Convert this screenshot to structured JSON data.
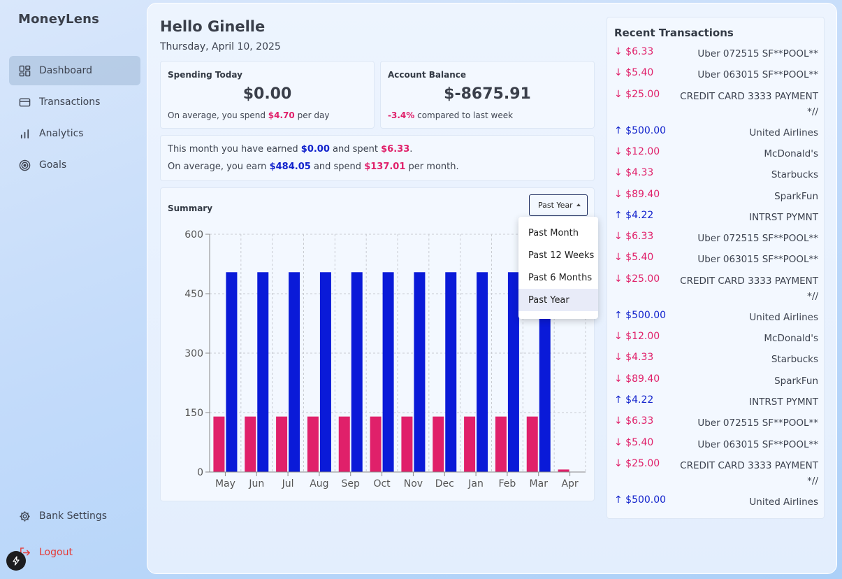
{
  "app": {
    "name": "MoneyLens"
  },
  "sidebar": {
    "items": [
      {
        "label": "Dashboard",
        "icon": "dashboard-icon"
      },
      {
        "label": "Transactions",
        "icon": "card-icon"
      },
      {
        "label": "Analytics",
        "icon": "bar-chart-icon"
      },
      {
        "label": "Goals",
        "icon": "target-icon"
      }
    ],
    "bank_settings": "Bank Settings",
    "logout": "Logout"
  },
  "header": {
    "greeting": "Hello Ginelle",
    "date": "Thursday, April 10, 2025"
  },
  "spending_today": {
    "title": "Spending Today",
    "amount": "$0.00",
    "avg_prefix": "On average, you spend",
    "avg_value": "$4.70",
    "avg_suffix": "per day"
  },
  "account_balance": {
    "title": "Account Balance",
    "amount": "$-8675.91",
    "change": "-3.4%",
    "change_suffix": "compared to last week"
  },
  "monthly": {
    "l1_prefix": "This month you have earned",
    "l1_earned": "$0.00",
    "l1_mid": "and spent",
    "l1_spent": "$6.33",
    "l1_end": ".",
    "l2_prefix": "On average, you earn",
    "l2_earn": "$484.05",
    "l2_mid": "and spend",
    "l2_spend": "$137.01",
    "l2_end": "per month."
  },
  "summary": {
    "title": "Summary",
    "selected": "Past Year",
    "options": [
      "Past Month",
      "Past 12 Weeks",
      "Past 6 Months",
      "Past Year"
    ]
  },
  "chart_data": {
    "type": "bar",
    "categories": [
      "May",
      "Jun",
      "Jul",
      "Aug",
      "Sep",
      "Oct",
      "Nov",
      "Dec",
      "Jan",
      "Feb",
      "Mar",
      "Apr"
    ],
    "series": [
      {
        "color": "#e0206a",
        "values": [
          140,
          140,
          140,
          140,
          140,
          140,
          140,
          140,
          140,
          140,
          140,
          6.33
        ]
      },
      {
        "color": "#0a1ad8",
        "values": [
          504.22,
          504.22,
          504.22,
          504.22,
          504.22,
          504.22,
          504.22,
          504.22,
          504.22,
          504.22,
          504.22,
          0
        ]
      }
    ],
    "yticks": [
      "0",
      "150",
      "300",
      "450",
      "600"
    ],
    "ylim": [
      0,
      600
    ],
    "grid": true
  },
  "recent": {
    "title": "Recent Transactions",
    "items": [
      {
        "dir": "out",
        "amount": "↓ $6.33",
        "desc": "Uber 072515 SF**POOL**"
      },
      {
        "dir": "out",
        "amount": "↓ $5.40",
        "desc": "Uber 063015 SF**POOL**"
      },
      {
        "dir": "out",
        "amount": "↓ $25.00",
        "desc": "CREDIT CARD 3333 PAYMENT *//"
      },
      {
        "dir": "in",
        "amount": "↑ $500.00",
        "desc": "United Airlines"
      },
      {
        "dir": "out",
        "amount": "↓ $12.00",
        "desc": "McDonald's"
      },
      {
        "dir": "out",
        "amount": "↓ $4.33",
        "desc": "Starbucks"
      },
      {
        "dir": "out",
        "amount": "↓ $89.40",
        "desc": "SparkFun"
      },
      {
        "dir": "in",
        "amount": "↑ $4.22",
        "desc": "INTRST PYMNT"
      },
      {
        "dir": "out",
        "amount": "↓ $6.33",
        "desc": "Uber 072515 SF**POOL**"
      },
      {
        "dir": "out",
        "amount": "↓ $5.40",
        "desc": "Uber 063015 SF**POOL**"
      },
      {
        "dir": "out",
        "amount": "↓ $25.00",
        "desc": "CREDIT CARD 3333 PAYMENT *//"
      },
      {
        "dir": "in",
        "amount": "↑ $500.00",
        "desc": "United Airlines"
      },
      {
        "dir": "out",
        "amount": "↓ $12.00",
        "desc": "McDonald's"
      },
      {
        "dir": "out",
        "amount": "↓ $4.33",
        "desc": "Starbucks"
      },
      {
        "dir": "out",
        "amount": "↓ $89.40",
        "desc": "SparkFun"
      },
      {
        "dir": "in",
        "amount": "↑ $4.22",
        "desc": "INTRST PYMNT"
      },
      {
        "dir": "out",
        "amount": "↓ $6.33",
        "desc": "Uber 072515 SF**POOL**"
      },
      {
        "dir": "out",
        "amount": "↓ $5.40",
        "desc": "Uber 063015 SF**POOL**"
      },
      {
        "dir": "out",
        "amount": "↓ $25.00",
        "desc": "CREDIT CARD 3333 PAYMENT *//"
      },
      {
        "dir": "in",
        "amount": "↑ $500.00",
        "desc": "United Airlines"
      }
    ]
  },
  "colors": {
    "spend": "#e0206a",
    "earn": "#1122cc"
  }
}
